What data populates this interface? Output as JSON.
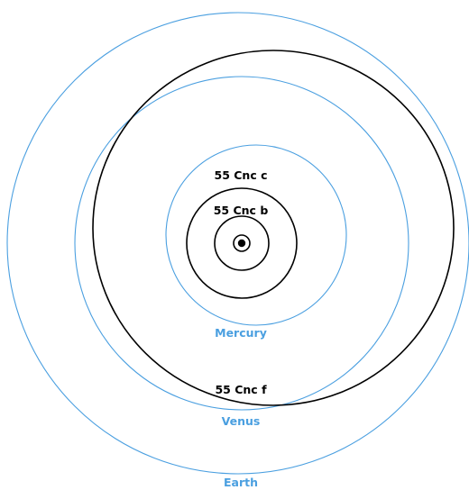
{
  "colors": {
    "solar_system_orbit": "#4a9fe0",
    "exoplanet_orbit": "#000000",
    "star": "#000000",
    "background": "#ffffff"
  },
  "labels": {
    "cnc_c": "55 Cnc c",
    "cnc_b": "55 Cnc b",
    "mercury": "Mercury",
    "cnc_f": "55 Cnc f",
    "venus": "Venus",
    "earth": "Earth"
  }
}
